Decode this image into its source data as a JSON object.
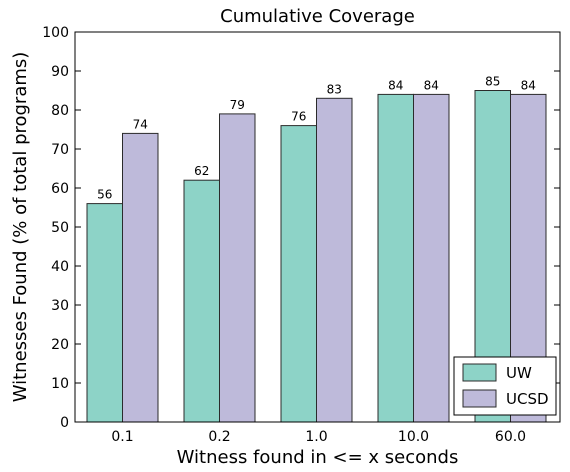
{
  "chart_data": {
    "type": "bar",
    "title": "Cumulative Coverage",
    "xlabel": "Witness found in <= x seconds",
    "ylabel": "Witnesses Found (% of total programs)",
    "categories": [
      "0.1",
      "0.2",
      "1.0",
      "10.0",
      "60.0"
    ],
    "series": [
      {
        "name": "UW",
        "values": [
          56,
          62,
          76,
          84,
          85
        ],
        "color": "#8dd3c7"
      },
      {
        "name": "UCSD",
        "values": [
          74,
          79,
          83,
          84,
          84
        ],
        "color": "#bebada"
      }
    ],
    "ylim": [
      0,
      100
    ],
    "yticks": [
      0,
      10,
      20,
      30,
      40,
      50,
      60,
      70,
      80,
      90,
      100
    ],
    "grid": false,
    "legend": "bottom-right",
    "show_data_labels": true
  }
}
